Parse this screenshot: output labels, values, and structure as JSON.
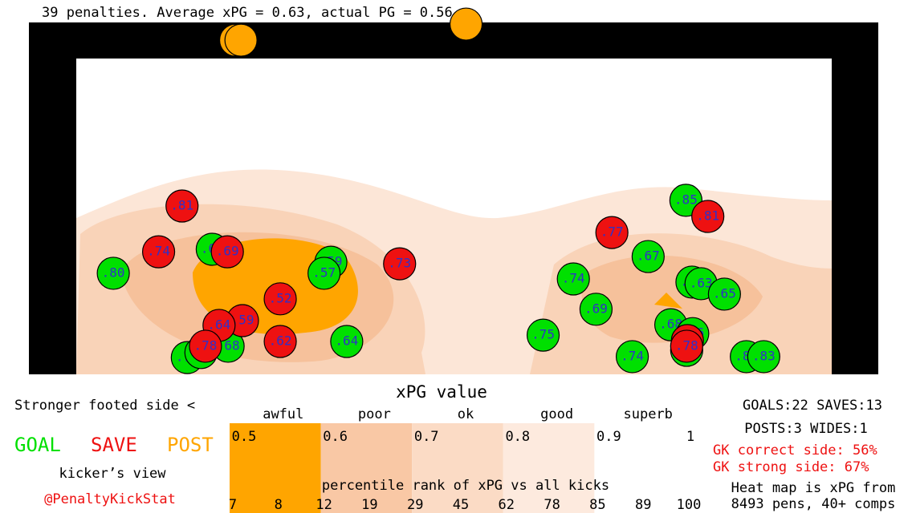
{
  "chart_data": {
    "type": "scatter",
    "title": "39 penalties. Average xPG = 0.63, actual PG = 0.56",
    "xlim": [
      0,
      100
    ],
    "ylim": [
      0,
      100
    ],
    "series": [
      {
        "name": "GOAL",
        "color": "#00e000",
        "x": [
          4.9,
          18.0,
          33.7,
          32.8,
          35.8,
          20.1,
          14.7,
          16.5,
          61.8,
          65.8,
          68.8,
          75.7,
          80.7,
          81.5,
          82.7,
          85.8,
          73.6,
          78.7,
          81.6,
          80.8,
          88.7,
          91.0
        ],
        "values": [
          32.0,
          39.6,
          35.5,
          32.0,
          10.4,
          8.9,
          5.3,
          6.9,
          12.4,
          30.2,
          20.6,
          37.3,
          55.1,
          29.2,
          28.7,
          25.4,
          5.6,
          15.7,
          12.9,
          7.6,
          5.6,
          5.6
        ],
        "xpg": [
          0.8,
          0.67,
          0.59,
          0.57,
          0.64,
          0.68,
          0.72,
          0.7,
          0.75,
          0.74,
          0.69,
          0.67,
          0.85,
          0.66,
          0.63,
          0.65,
          0.74,
          0.68,
          0.66,
          0.7,
          0.82,
          0.83
        ],
        "value_labels": [
          ".80",
          ".67",
          ".59",
          ".57",
          ".64",
          ".68",
          ".72",
          ".70",
          ".75",
          ".74",
          ".69",
          ".67",
          ".85",
          ".66",
          ".63",
          ".65",
          ".74",
          ".68",
          ".66",
          ".70",
          ".82",
          ".83"
        ]
      },
      {
        "name": "SAVE",
        "color": "#ee1111",
        "x": [
          14.0,
          10.9,
          20.0,
          42.8,
          27.0,
          22.0,
          18.9,
          17.1,
          27.0,
          70.9,
          83.6,
          80.9,
          80.8
        ],
        "values": [
          53.3,
          38.8,
          38.8,
          35.0,
          23.9,
          17.0,
          15.5,
          8.9,
          10.4,
          44.9,
          50.0,
          10.7,
          8.9
        ],
        "xpg": [
          0.81,
          0.74,
          0.69,
          0.73,
          0.52,
          0.59,
          0.64,
          0.78,
          0.62,
          0.77,
          0.81,
          0.8,
          0.78
        ],
        "value_labels": [
          ".81",
          ".74",
          ".69",
          ".73",
          ".52",
          ".59",
          ".64",
          ".78",
          ".62",
          ".77",
          ".81",
          ".80",
          ".78"
        ]
      },
      {
        "name": "POST",
        "color": "#ffa500",
        "x": [
          21.1,
          21.8,
          51.6
        ],
        "values": [
          105.8,
          105.8,
          110.9
        ]
      }
    ],
    "colorbar": {
      "title": "xPG value",
      "ticks": [
        0.5,
        0.6,
        0.7,
        0.8,
        0.9,
        1
      ],
      "categories": [
        "awful",
        "poor",
        "ok",
        "good",
        "superb"
      ],
      "band_colors": [
        "#ffa500",
        "#f9c8a5",
        "#fbdbc5",
        "#fdeade",
        "#ffffff"
      ],
      "percentile_label": "percentile rank of xPG vs all kicks",
      "percentiles": [
        7,
        8,
        12,
        19,
        29,
        45,
        62,
        78,
        85,
        89,
        100
      ]
    },
    "side_note": "Stronger footed side <",
    "view_note": "kicker’s view",
    "credit": "@PenaltyKickStat",
    "stats": [
      "GOALS:22 SAVES:13",
      "POSTS:3 WIDES:1"
    ],
    "gk_stats": [
      "GK correct side: 56%",
      "GK strong side: 67%"
    ],
    "footnote": [
      "Heat map is xPG from",
      "8493 pens, 40+ comps"
    ]
  }
}
